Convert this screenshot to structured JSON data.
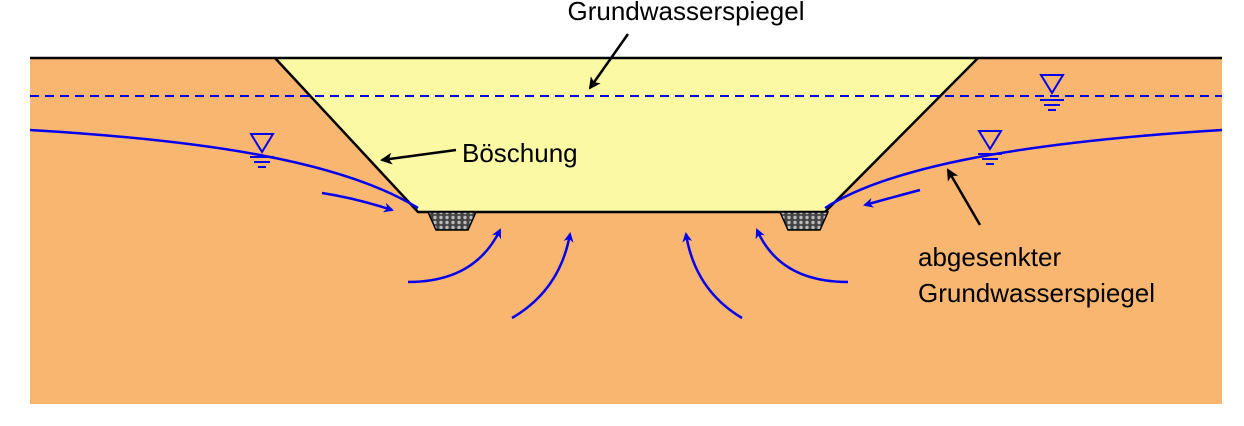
{
  "labels": {
    "groundwater_level": "Grundwasserspiegel",
    "slope": "Böschung",
    "lowered_line1": "abgesenkter",
    "lowered_line2": "Grundwasserspiegel"
  },
  "colors": {
    "soil": "#f9b671",
    "excavation": "#fbf9a4",
    "water": "#0000ee",
    "outline": "#000000",
    "drain": "#555555"
  },
  "icons": [
    "water-level-symbol",
    "drain-gravel",
    "flow-arrow",
    "pointer-arrow"
  ]
}
